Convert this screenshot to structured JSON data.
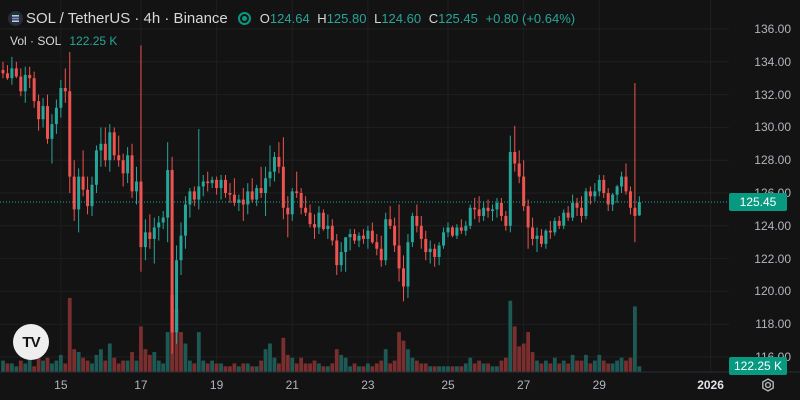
{
  "legend": {
    "symbol": "SOL / TetherUS · 4h · Binance",
    "open_label": "O",
    "open": "124.64",
    "high_label": "H",
    "high": "125.80",
    "low_label": "L",
    "low": "124.60",
    "close_label": "C",
    "close": "125.45",
    "change": "+0.80 (+0.64%)"
  },
  "volume_legend": {
    "label": "Vol · SOL",
    "value": "122.25 K"
  },
  "price_axis": [
    "136.00",
    "134.00",
    "132.00",
    "130.00",
    "128.00",
    "126.00",
    "124.00",
    "122.00",
    "120.00",
    "118.00",
    "116.00"
  ],
  "time_axis": [
    "15",
    "17",
    "19",
    "21",
    "23",
    "25",
    "27",
    "29",
    "2026"
  ],
  "last_price": "125.45",
  "last_volume": "122.25 K",
  "logo_text": "TV",
  "colors": {
    "up": "#26a69a",
    "down": "#ef5350",
    "background": "#131313",
    "accent": "#089981"
  },
  "chart_data": {
    "type": "candlestick",
    "ylim": [
      115.3,
      136.5
    ],
    "grid": true,
    "last_price_line": 125.45,
    "candles": [
      [
        133.5,
        134.0,
        133.0,
        133.3
      ],
      [
        133.3,
        133.8,
        132.9,
        133.0
      ],
      [
        133.0,
        134.3,
        132.6,
        133.6
      ],
      [
        133.6,
        134.0,
        133.0,
        133.1
      ],
      [
        133.1,
        133.6,
        131.9,
        132.2
      ],
      [
        132.2,
        133.7,
        131.5,
        133.2
      ],
      [
        133.2,
        133.7,
        132.4,
        133.0
      ],
      [
        133.0,
        133.4,
        131.2,
        131.6
      ],
      [
        131.6,
        132.0,
        129.8,
        130.5
      ],
      [
        130.5,
        131.8,
        130.0,
        131.3
      ],
      [
        131.3,
        132.0,
        129.0,
        129.3
      ],
      [
        129.3,
        130.8,
        127.8,
        130.2
      ],
      [
        130.2,
        131.7,
        129.6,
        131.2
      ],
      [
        131.2,
        132.9,
        130.6,
        132.4
      ],
      [
        132.4,
        133.6,
        131.5,
        132.2
      ],
      [
        132.2,
        134.6,
        126.0,
        127.0
      ],
      [
        127.0,
        128.0,
        124.3,
        125.0
      ],
      [
        125.0,
        127.5,
        123.6,
        127.0
      ],
      [
        127.0,
        128.6,
        125.8,
        126.2
      ],
      [
        126.2,
        127.0,
        124.7,
        125.2
      ],
      [
        125.2,
        127.0,
        124.6,
        126.5
      ],
      [
        126.5,
        128.9,
        126.0,
        128.6
      ],
      [
        128.6,
        130.0,
        127.6,
        129.0
      ],
      [
        129.0,
        130.0,
        127.6,
        128.0
      ],
      [
        128.0,
        130.2,
        127.3,
        129.7
      ],
      [
        129.7,
        130.0,
        128.0,
        128.3
      ],
      [
        128.3,
        129.5,
        127.6,
        128.0
      ],
      [
        128.0,
        128.4,
        126.4,
        127.2
      ],
      [
        127.2,
        128.8,
        126.6,
        128.3
      ],
      [
        128.3,
        129.0,
        125.7,
        126.1
      ],
      [
        126.1,
        127.6,
        125.3,
        126.7
      ],
      [
        126.7,
        135.0,
        121.2,
        122.7
      ],
      [
        122.7,
        124.4,
        121.9,
        123.6
      ],
      [
        123.6,
        124.7,
        122.6,
        123.2
      ],
      [
        123.2,
        124.5,
        121.7,
        123.9
      ],
      [
        123.9,
        124.6,
        123.1,
        124.2
      ],
      [
        124.2,
        124.9,
        123.8,
        124.5
      ],
      [
        124.5,
        129.1,
        123.0,
        127.4
      ],
      [
        127.4,
        128.2,
        116.2,
        117.5
      ],
      [
        117.5,
        122.8,
        116.8,
        121.9
      ],
      [
        121.9,
        124.2,
        121.0,
        123.4
      ],
      [
        123.4,
        125.8,
        122.6,
        125.3
      ],
      [
        125.3,
        126.3,
        124.5,
        126.1
      ],
      [
        126.1,
        126.4,
        125.2,
        125.6
      ],
      [
        125.6,
        129.9,
        125.0,
        126.4
      ],
      [
        126.4,
        127.1,
        125.8,
        126.7
      ],
      [
        126.7,
        127.3,
        126.1,
        126.6
      ],
      [
        126.6,
        127.0,
        126.3,
        126.8
      ],
      [
        126.8,
        127.0,
        125.9,
        126.3
      ],
      [
        126.3,
        127.1,
        125.6,
        126.8
      ],
      [
        126.8,
        127.1,
        125.7,
        126.0
      ],
      [
        126.0,
        126.6,
        125.4,
        125.9
      ],
      [
        125.9,
        126.9,
        125.2,
        125.4
      ],
      [
        125.4,
        125.9,
        124.9,
        125.6
      ],
      [
        125.6,
        126.3,
        124.3,
        125.3
      ],
      [
        125.3,
        126.6,
        124.7,
        126.1
      ],
      [
        126.1,
        126.9,
        125.4,
        125.6
      ],
      [
        125.6,
        126.5,
        125.2,
        126.3
      ],
      [
        126.3,
        127.6,
        125.7,
        126.0
      ],
      [
        126.0,
        127.6,
        124.6,
        126.9
      ],
      [
        126.9,
        128.9,
        126.4,
        127.3
      ],
      [
        127.3,
        128.5,
        126.7,
        128.2
      ],
      [
        128.2,
        129.1,
        127.2,
        127.6
      ],
      [
        127.6,
        129.4,
        124.4,
        125.1
      ],
      [
        125.1,
        125.8,
        123.3,
        124.7
      ],
      [
        124.7,
        126.3,
        124.3,
        126.1
      ],
      [
        126.1,
        127.3,
        125.7,
        126.0
      ],
      [
        126.0,
        126.3,
        124.7,
        125.1
      ],
      [
        125.1,
        125.8,
        124.6,
        124.8
      ],
      [
        124.8,
        125.3,
        123.9,
        124.1
      ],
      [
        124.1,
        124.7,
        123.2,
        123.9
      ],
      [
        123.9,
        125.2,
        123.5,
        124.8
      ],
      [
        124.8,
        125.0,
        123.7,
        123.8
      ],
      [
        123.8,
        124.7,
        123.2,
        124.0
      ],
      [
        124.0,
        124.4,
        122.8,
        123.1
      ],
      [
        123.1,
        123.5,
        121.0,
        121.6
      ],
      [
        121.6,
        123.0,
        121.2,
        122.4
      ],
      [
        122.4,
        123.3,
        121.2,
        123.3
      ],
      [
        123.3,
        123.8,
        122.5,
        123.5
      ],
      [
        123.5,
        123.8,
        122.9,
        123.1
      ],
      [
        123.1,
        123.6,
        122.7,
        123.4
      ],
      [
        123.4,
        123.8,
        122.9,
        123.2
      ],
      [
        123.2,
        124.0,
        122.6,
        123.7
      ],
      [
        123.7,
        124.2,
        122.9,
        123.0
      ],
      [
        123.0,
        123.5,
        122.2,
        122.6
      ],
      [
        122.6,
        123.4,
        121.5,
        121.9
      ],
      [
        121.9,
        124.8,
        121.6,
        124.4
      ],
      [
        124.4,
        125.2,
        123.8,
        124.0
      ],
      [
        124.0,
        124.5,
        122.4,
        122.8
      ],
      [
        122.8,
        125.3,
        120.6,
        121.4
      ],
      [
        121.4,
        122.2,
        119.4,
        120.3
      ],
      [
        120.3,
        123.5,
        119.6,
        123.0
      ],
      [
        123.0,
        124.8,
        122.7,
        124.6
      ],
      [
        124.6,
        125.3,
        123.6,
        124.0
      ],
      [
        124.0,
        124.6,
        122.6,
        123.2
      ],
      [
        123.2,
        123.7,
        121.9,
        122.4
      ],
      [
        122.4,
        123.1,
        121.7,
        122.6
      ],
      [
        122.6,
        122.9,
        121.5,
        122.1
      ],
      [
        122.1,
        123.0,
        121.6,
        122.8
      ],
      [
        122.8,
        123.9,
        122.6,
        123.6
      ],
      [
        123.6,
        124.2,
        123.3,
        123.9
      ],
      [
        123.9,
        124.0,
        123.3,
        123.4
      ],
      [
        123.4,
        124.1,
        123.2,
        123.9
      ],
      [
        123.9,
        124.4,
        123.5,
        123.7
      ],
      [
        123.7,
        124.3,
        123.4,
        124.0
      ],
      [
        124.0,
        125.3,
        123.8,
        125.1
      ],
      [
        125.1,
        125.7,
        124.4,
        125.0
      ],
      [
        125.0,
        125.8,
        124.2,
        124.6
      ],
      [
        124.6,
        125.5,
        124.3,
        125.1
      ],
      [
        125.1,
        125.6,
        124.5,
        124.9
      ],
      [
        124.9,
        125.3,
        124.3,
        125.0
      ],
      [
        125.0,
        125.7,
        124.5,
        125.4
      ],
      [
        125.4,
        125.7,
        124.3,
        124.6
      ],
      [
        124.6,
        124.9,
        123.7,
        124.0
      ],
      [
        124.0,
        129.5,
        123.6,
        128.5
      ],
      [
        128.5,
        130.1,
        127.3,
        127.8
      ],
      [
        127.8,
        128.6,
        126.6,
        127.0
      ],
      [
        127.0,
        128.0,
        124.9,
        125.2
      ],
      [
        125.2,
        125.6,
        122.6,
        123.9
      ],
      [
        123.9,
        124.5,
        122.8,
        123.2
      ],
      [
        123.2,
        123.9,
        122.4,
        123.4
      ],
      [
        123.4,
        123.8,
        122.7,
        122.9
      ],
      [
        122.9,
        123.8,
        122.6,
        123.7
      ],
      [
        123.7,
        124.3,
        123.2,
        123.6
      ],
      [
        123.6,
        124.5,
        123.4,
        124.3
      ],
      [
        124.3,
        124.6,
        123.8,
        124.0
      ],
      [
        124.0,
        125.0,
        123.8,
        124.8
      ],
      [
        124.8,
        125.2,
        124.3,
        124.5
      ],
      [
        124.5,
        125.9,
        124.3,
        125.4
      ],
      [
        125.4,
        125.7,
        124.6,
        125.1
      ],
      [
        125.1,
        125.8,
        124.2,
        124.6
      ],
      [
        124.6,
        126.3,
        124.4,
        126.1
      ],
      [
        126.1,
        126.4,
        125.3,
        125.8
      ],
      [
        125.8,
        126.6,
        125.5,
        126.1
      ],
      [
        126.1,
        127.1,
        125.8,
        126.8
      ],
      [
        126.8,
        127.1,
        125.7,
        126.0
      ],
      [
        126.0,
        126.3,
        124.9,
        125.3
      ],
      [
        125.3,
        126.0,
        124.9,
        125.9
      ],
      [
        125.9,
        126.5,
        125.4,
        126.4
      ],
      [
        126.4,
        127.3,
        126.0,
        127.0
      ],
      [
        127.0,
        127.8,
        125.9,
        126.1
      ],
      [
        126.1,
        126.4,
        124.7,
        125.1
      ],
      [
        125.1,
        132.7,
        123.0,
        124.6
      ],
      [
        124.64,
        125.8,
        124.6,
        125.45
      ]
    ],
    "volumes": [
      [
        4,
        true
      ],
      [
        3,
        false
      ],
      [
        3,
        true
      ],
      [
        2,
        true
      ],
      [
        4,
        false
      ],
      [
        3,
        true
      ],
      [
        5,
        true
      ],
      [
        2,
        false
      ],
      [
        6,
        false
      ],
      [
        4,
        true
      ],
      [
        5,
        false
      ],
      [
        3,
        true
      ],
      [
        4,
        true
      ],
      [
        6,
        true
      ],
      [
        3,
        false
      ],
      [
        26,
        false
      ],
      [
        8,
        false
      ],
      [
        7,
        true
      ],
      [
        5,
        false
      ],
      [
        4,
        false
      ],
      [
        3,
        true
      ],
      [
        6,
        true
      ],
      [
        8,
        true
      ],
      [
        4,
        false
      ],
      [
        10,
        true
      ],
      [
        5,
        false
      ],
      [
        3,
        false
      ],
      [
        4,
        false
      ],
      [
        4,
        true
      ],
      [
        7,
        false
      ],
      [
        4,
        true
      ],
      [
        16,
        false
      ],
      [
        8,
        false
      ],
      [
        6,
        false
      ],
      [
        7,
        true
      ],
      [
        4,
        true
      ],
      [
        3,
        true
      ],
      [
        14,
        true
      ],
      [
        27,
        false
      ],
      [
        22,
        false
      ],
      [
        14,
        false
      ],
      [
        10,
        true
      ],
      [
        4,
        true
      ],
      [
        3,
        false
      ],
      [
        14,
        true
      ],
      [
        4,
        true
      ],
      [
        3,
        false
      ],
      [
        4,
        true
      ],
      [
        3,
        false
      ],
      [
        3,
        true
      ],
      [
        2,
        false
      ],
      [
        2,
        false
      ],
      [
        3,
        false
      ],
      [
        2,
        true
      ],
      [
        3,
        false
      ],
      [
        3,
        true
      ],
      [
        2,
        false
      ],
      [
        2,
        true
      ],
      [
        4,
        false
      ],
      [
        8,
        true
      ],
      [
        10,
        true
      ],
      [
        5,
        true
      ],
      [
        3,
        false
      ],
      [
        12,
        false
      ],
      [
        6,
        false
      ],
      [
        5,
        true
      ],
      [
        3,
        false
      ],
      [
        5,
        false
      ],
      [
        3,
        false
      ],
      [
        3,
        false
      ],
      [
        4,
        false
      ],
      [
        3,
        true
      ],
      [
        2,
        false
      ],
      [
        2,
        true
      ],
      [
        3,
        false
      ],
      [
        8,
        false
      ],
      [
        6,
        true
      ],
      [
        5,
        true
      ],
      [
        2,
        true
      ],
      [
        3,
        false
      ],
      [
        2,
        true
      ],
      [
        2,
        false
      ],
      [
        3,
        true
      ],
      [
        2,
        false
      ],
      [
        3,
        false
      ],
      [
        4,
        false
      ],
      [
        8,
        true
      ],
      [
        3,
        false
      ],
      [
        4,
        false
      ],
      [
        14,
        false
      ],
      [
        11,
        false
      ],
      [
        8,
        true
      ],
      [
        5,
        true
      ],
      [
        4,
        false
      ],
      [
        3,
        false
      ],
      [
        3,
        false
      ],
      [
        2,
        true
      ],
      [
        2,
        false
      ],
      [
        2,
        true
      ],
      [
        2,
        true
      ],
      [
        2,
        true
      ],
      [
        2,
        false
      ],
      [
        2,
        true
      ],
      [
        2,
        false
      ],
      [
        3,
        true
      ],
      [
        5,
        true
      ],
      [
        3,
        false
      ],
      [
        4,
        false
      ],
      [
        3,
        true
      ],
      [
        3,
        false
      ],
      [
        2,
        true
      ],
      [
        2,
        true
      ],
      [
        4,
        false
      ],
      [
        5,
        false
      ],
      [
        25,
        true
      ],
      [
        16,
        false
      ],
      [
        9,
        false
      ],
      [
        10,
        false
      ],
      [
        14,
        false
      ],
      [
        7,
        false
      ],
      [
        4,
        true
      ],
      [
        3,
        false
      ],
      [
        4,
        true
      ],
      [
        3,
        false
      ],
      [
        5,
        true
      ],
      [
        3,
        false
      ],
      [
        4,
        true
      ],
      [
        3,
        false
      ],
      [
        6,
        true
      ],
      [
        4,
        false
      ],
      [
        4,
        false
      ],
      [
        6,
        true
      ],
      [
        3,
        false
      ],
      [
        4,
        true
      ],
      [
        6,
        true
      ],
      [
        4,
        false
      ],
      [
        3,
        false
      ],
      [
        3,
        true
      ],
      [
        4,
        true
      ],
      [
        5,
        true
      ],
      [
        4,
        false
      ],
      [
        5,
        false
      ],
      [
        23,
        true
      ],
      [
        2,
        true
      ]
    ],
    "time_ticks": [
      {
        "label": "15",
        "index": 13
      },
      {
        "label": "17",
        "index": 31
      },
      {
        "label": "19",
        "index": 48
      },
      {
        "label": "21",
        "index": 65
      },
      {
        "label": "23",
        "index": 82
      },
      {
        "label": "25",
        "index": 100
      },
      {
        "label": "27",
        "index": 117
      },
      {
        "label": "29",
        "index": 134
      },
      {
        "label": "2026",
        "index": 159
      }
    ]
  }
}
